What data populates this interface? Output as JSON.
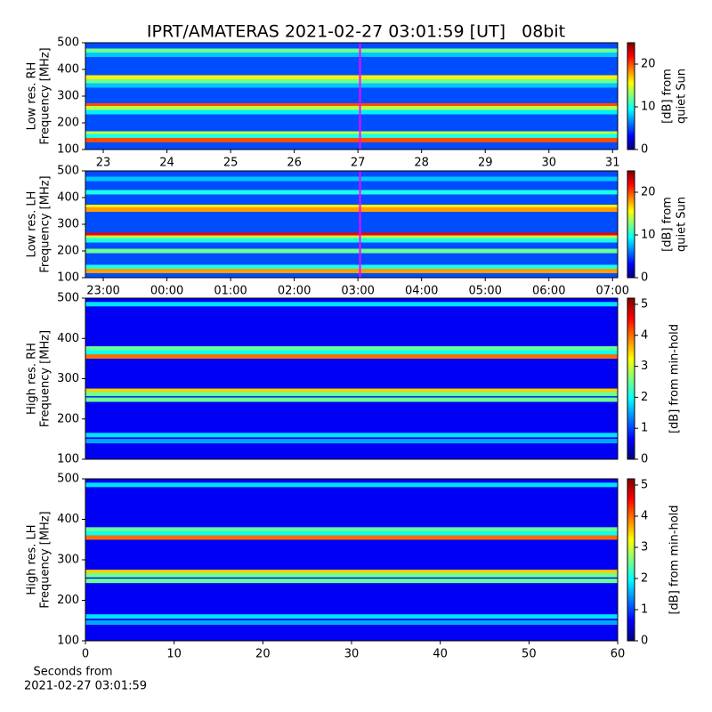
{
  "title": "IPRT/AMATERAS 2021-02-27 03:01:59 [UT]   08bit",
  "chart_data": [
    {
      "type": "spectrogram",
      "ylabel": [
        "Low res. RH",
        "Frequency [MHz]"
      ],
      "xlim": [
        22.72,
        31.08
      ],
      "xticks": [
        23,
        24,
        25,
        26,
        27,
        28,
        29,
        30,
        31
      ],
      "ylim": [
        100,
        500
      ],
      "yticks": [
        100,
        200,
        300,
        400,
        500
      ],
      "clim": [
        0,
        25
      ],
      "cticks": [
        0,
        10,
        20
      ],
      "clabel": [
        "[dB] from",
        "quiet Sun"
      ],
      "colormap": "jet",
      "background": 5,
      "bands": {
        "freq": [
          470,
          455,
          370,
          355,
          340,
          265,
          255,
          240,
          160,
          150,
          135
        ],
        "values": [
          12,
          8,
          16,
          12,
          8,
          20,
          14,
          9,
          14,
          10,
          20
        ]
      },
      "marker": {
        "x": 27.033,
        "color": "#ff00ff"
      }
    },
    {
      "type": "spectrogram",
      "ylabel": [
        "Low res. LH",
        "Frequency [MHz]"
      ],
      "xlim": [
        22.72,
        31.08
      ],
      "xticks": [
        {
          "value": 23,
          "label": "23:00"
        },
        {
          "value": 24,
          "label": "00:00"
        },
        {
          "value": 25,
          "label": "01:00"
        },
        {
          "value": 26,
          "label": "02:00"
        },
        {
          "value": 27,
          "label": "03:00"
        },
        {
          "value": 28,
          "label": "04:00"
        },
        {
          "value": 29,
          "label": "05:00"
        },
        {
          "value": 30,
          "label": "06:00"
        },
        {
          "value": 31,
          "label": "07:00"
        }
      ],
      "ylim": [
        100,
        500
      ],
      "yticks": [
        100,
        200,
        300,
        400,
        500
      ],
      "clim": [
        0,
        25
      ],
      "cticks": [
        0,
        10,
        20
      ],
      "clabel": [
        "[dB] from",
        "quiet Sun"
      ],
      "colormap": "jet",
      "background": 5,
      "bands": {
        "freq": [
          470,
          420,
          365,
          355,
          260,
          250,
          240,
          200,
          140,
          125
        ],
        "values": [
          8,
          10,
          16,
          18,
          22,
          14,
          10,
          12,
          10,
          18
        ]
      },
      "marker": {
        "x": 27.033,
        "color": "#ff00ff"
      }
    },
    {
      "type": "spectrogram",
      "ylabel": [
        "High res. RH",
        "Frequency [MHz]"
      ],
      "xlim": [
        0,
        60
      ],
      "ylim": [
        100,
        500
      ],
      "yticks": [
        100,
        200,
        300,
        400,
        500
      ],
      "clim": [
        0,
        5.2
      ],
      "cticks": [
        0,
        1,
        2,
        3,
        4,
        5
      ],
      "clabel": [
        "[dB] from min-hold"
      ],
      "colormap": "jet",
      "background": 0.6,
      "bands": {
        "freq": [
          485,
          375,
          365,
          355,
          270,
          262,
          248,
          160,
          145
        ],
        "values": [
          1.8,
          2.5,
          2,
          4,
          3.5,
          2.5,
          2.5,
          1.8,
          1.5
        ]
      }
    },
    {
      "type": "spectrogram",
      "ylabel": [
        "High res. LH",
        "Frequency [MHz]"
      ],
      "xlim": [
        0,
        60
      ],
      "xticks": [
        0,
        10,
        20,
        30,
        40,
        50,
        60
      ],
      "ylim": [
        100,
        500
      ],
      "yticks": [
        100,
        200,
        300,
        400,
        500
      ],
      "clim": [
        0,
        5.2
      ],
      "cticks": [
        0,
        1,
        2,
        3,
        4,
        5
      ],
      "clabel": [
        "[dB] from min-hold"
      ],
      "colormap": "jet",
      "background": 0.6,
      "bands": {
        "freq": [
          485,
          375,
          365,
          355,
          270,
          262,
          248,
          160,
          145
        ],
        "values": [
          1.8,
          2.5,
          2,
          4,
          3.5,
          2.5,
          2.5,
          1.8,
          1.5
        ]
      },
      "xlabel": [
        "Seconds from",
        "2021-02-27 03:01:59"
      ]
    }
  ]
}
